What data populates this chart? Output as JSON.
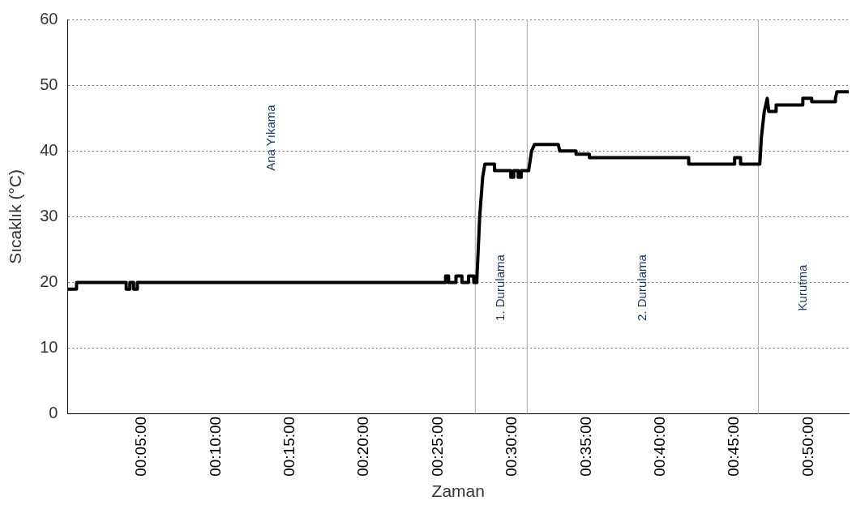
{
  "chart_data": {
    "type": "line",
    "xlabel": "Zaman",
    "ylabel": "Sıcaklık (°C)",
    "xlim": [
      0,
      52.7
    ],
    "ylim": [
      0,
      60
    ],
    "xticks": [
      {
        "value": 5,
        "label": "00:05:00"
      },
      {
        "value": 10,
        "label": "00:10:00"
      },
      {
        "value": 15,
        "label": "00:15:00"
      },
      {
        "value": 20,
        "label": "00:20:00"
      },
      {
        "value": 25,
        "label": "00:25:00"
      },
      {
        "value": 30,
        "label": "00:30:00"
      },
      {
        "value": 35,
        "label": "00:35:00"
      },
      {
        "value": 40,
        "label": "00:40:00"
      },
      {
        "value": 45,
        "label": "00:45:00"
      },
      {
        "value": 50,
        "label": "00:50:00"
      }
    ],
    "yticks": [
      0,
      10,
      20,
      30,
      40,
      50,
      60
    ],
    "grid": "y",
    "legend": false,
    "marker": "none",
    "line_style": "solid",
    "series": [
      {
        "color": "#000000",
        "x": [
          0,
          0.6,
          0.6,
          3.95,
          3.95,
          4.2,
          4.2,
          4.45,
          4.45,
          4.7,
          4.7,
          25.5,
          25.5,
          25.7,
          25.7,
          26.2,
          26.2,
          26.6,
          26.6,
          27.05,
          27.05,
          27.4,
          27.4,
          27.6,
          27.8,
          28.0,
          28.15,
          28.8,
          28.8,
          29.9,
          29.9,
          30.1,
          30.1,
          30.4,
          30.4,
          30.6,
          30.6,
          31.1,
          31.3,
          31.5,
          33.1,
          33.2,
          34.3,
          34.3,
          35.2,
          35.2,
          41.9,
          41.9,
          45,
          45,
          45.4,
          45.4,
          46.7,
          46.8,
          47.0,
          47.2,
          47.3,
          47.8,
          47.8,
          49.6,
          49.6,
          50.2,
          50.2,
          51.8,
          51.8,
          51.9,
          52.7
        ],
        "values": [
          19,
          19,
          20,
          20,
          19,
          19,
          20,
          20,
          19,
          19,
          20,
          20,
          21,
          21,
          20,
          20,
          21,
          21,
          20,
          20,
          21,
          21,
          20,
          20,
          30,
          36,
          38,
          38,
          37,
          37,
          36,
          36,
          37,
          37,
          36,
          36,
          37,
          37,
          40,
          41,
          41,
          40,
          40,
          39.5,
          39.5,
          39,
          39,
          38,
          38,
          39,
          39,
          38,
          38,
          42,
          46,
          48,
          46,
          46,
          47,
          47,
          48,
          48,
          47.5,
          47.5,
          48,
          49,
          49
        ]
      }
    ],
    "ref_lines": [
      {
        "axis": "x",
        "value": 27.5,
        "color": "#a6a6a6"
      },
      {
        "axis": "x",
        "value": 31.0,
        "color": "#a6a6a6"
      },
      {
        "axis": "x",
        "value": 46.6,
        "color": "#a6a6a6"
      }
    ],
    "annotations": [
      "Ana Yıkama",
      "1. Durulama",
      "2. Durulama",
      "Kurutma"
    ]
  }
}
